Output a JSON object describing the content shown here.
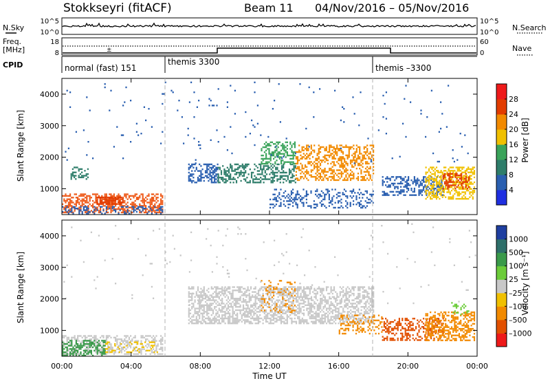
{
  "header": {
    "station": "Stokkseyri (fitACF)",
    "beam": "Beam 11",
    "date_range": "04/Nov/2016 – 05/Nov/2016"
  },
  "top_panels": {
    "nsky_label": "N.Sky",
    "nsky_ticks": [
      "10^5",
      "10^0"
    ],
    "nsearch_ticks": [
      "10^5",
      "10^0"
    ],
    "nsearch_label": "N.Search",
    "freq_label": "Freq.",
    "freq_unit": "[MHz]",
    "freq_ticks": [
      "18",
      "8"
    ],
    "nave_ticks": [
      "60",
      "0"
    ],
    "nave_label": "Nave",
    "cpid_label": "CPID",
    "cpid_segments": [
      {
        "label": "normal (fast) 151",
        "start": 0,
        "end": 6
      },
      {
        "label": "themis 3300",
        "start": 6,
        "end": 18
      },
      {
        "label": "themis –3300",
        "start": 18,
        "end": 24
      }
    ]
  },
  "chart_data": [
    {
      "type": "heatmap",
      "name": "power",
      "ylabel": "Slant Range [km]",
      "xlabel": "Time UT",
      "xlim": [
        0,
        24
      ],
      "ylim": [
        180,
        4500
      ],
      "y_ticks": [
        "1000",
        "2000",
        "3000",
        "4000"
      ],
      "x_ticks": [
        "00:00",
        "04:00",
        "08:00",
        "12:00",
        "16:00",
        "20:00",
        "00:00"
      ],
      "colorbar": {
        "label": "Power [dB]",
        "ticks": [
          "4",
          "8",
          "12",
          "16",
          "20",
          "24",
          "28"
        ],
        "colors": [
          "#1f2fe0",
          "#2a5fb0",
          "#2e7d6a",
          "#3aa35a",
          "#f0c000",
          "#f28a00",
          "#e23c00",
          "#ee1a1a"
        ]
      },
      "regions": [
        {
          "t0": 0.0,
          "t1": 5.8,
          "r0": 250,
          "r1": 850,
          "c": "#ee5a1a",
          "d": 0.55
        },
        {
          "t0": 0.0,
          "t1": 5.8,
          "r0": 200,
          "r1": 450,
          "c": "#2a5fb0",
          "d": 0.35
        },
        {
          "t0": 2.0,
          "t1": 3.5,
          "r0": 500,
          "r1": 750,
          "c": "#e23c00",
          "d": 0.7
        },
        {
          "t0": 0.5,
          "t1": 1.5,
          "r0": 1300,
          "r1": 1700,
          "c": "#2e7d6a",
          "d": 0.35
        },
        {
          "t0": 7.3,
          "t1": 9.0,
          "r0": 1200,
          "r1": 1800,
          "c": "#2a5fb0",
          "d": 0.45
        },
        {
          "t0": 9.0,
          "t1": 13.5,
          "r0": 1200,
          "r1": 1800,
          "c": "#2e7d6a",
          "d": 0.45
        },
        {
          "t0": 11.5,
          "t1": 13.5,
          "r0": 1800,
          "r1": 2500,
          "c": "#3aa35a",
          "d": 0.5
        },
        {
          "t0": 13.5,
          "t1": 18.0,
          "r0": 1300,
          "r1": 2400,
          "c": "#f28a00",
          "d": 0.45
        },
        {
          "t0": 12.0,
          "t1": 18.0,
          "r0": 400,
          "r1": 1000,
          "c": "#2a5fb0",
          "d": 0.25
        },
        {
          "t0": 18.5,
          "t1": 22.0,
          "r0": 800,
          "r1": 1400,
          "c": "#2a5fb0",
          "d": 0.45
        },
        {
          "t0": 21.0,
          "t1": 23.8,
          "r0": 700,
          "r1": 1700,
          "c": "#f0c000",
          "d": 0.5
        },
        {
          "t0": 22.0,
          "t1": 23.5,
          "r0": 1000,
          "r1": 1500,
          "c": "#e23c00",
          "d": 0.45
        },
        {
          "t0": 0.0,
          "t1": 24.0,
          "r0": 1800,
          "r1": 4400,
          "c": "#2a5fb0",
          "d": 0.012
        }
      ]
    },
    {
      "type": "heatmap",
      "name": "velocity",
      "ylabel": "Slant Range [km]",
      "xlabel": "Time UT",
      "xlim": [
        0,
        24
      ],
      "ylim": [
        180,
        4500
      ],
      "y_ticks": [
        "1000",
        "2000",
        "3000",
        "4000"
      ],
      "x_ticks": [
        "00:00",
        "04:00",
        "08:00",
        "12:00",
        "16:00",
        "20:00",
        "00:00"
      ],
      "colorbar": {
        "label": "Velocity [m s⁻¹]",
        "ticks": [
          "1000",
          "500",
          "100",
          "25",
          "–25",
          "–100",
          "–500",
          "–1000"
        ],
        "colors": [
          "#1f3fa0",
          "#2e6f6a",
          "#3a9a4a",
          "#6ccc3a",
          "#c8c8c8",
          "#f0c000",
          "#f28a00",
          "#e25000",
          "#ee1a1a"
        ]
      },
      "regions": [
        {
          "t0": 0.0,
          "t1": 5.8,
          "r0": 250,
          "r1": 850,
          "c": "#c8c8c8",
          "d": 0.45
        },
        {
          "t0": 0.0,
          "t1": 2.5,
          "r0": 200,
          "r1": 700,
          "c": "#3a9a4a",
          "d": 0.45
        },
        {
          "t0": 2.5,
          "t1": 5.5,
          "r0": 300,
          "r1": 650,
          "c": "#f0c000",
          "d": 0.25
        },
        {
          "t0": 7.3,
          "t1": 18.0,
          "r0": 1200,
          "r1": 2400,
          "c": "#c8c8c8",
          "d": 0.55
        },
        {
          "t0": 11.5,
          "t1": 13.5,
          "r0": 1600,
          "r1": 2600,
          "c": "#f28a00",
          "d": 0.18
        },
        {
          "t0": 16.0,
          "t1": 18.5,
          "r0": 900,
          "r1": 1500,
          "c": "#f28a00",
          "d": 0.3
        },
        {
          "t0": 18.5,
          "t1": 22.0,
          "r0": 700,
          "r1": 1400,
          "c": "#e25000",
          "d": 0.4
        },
        {
          "t0": 21.0,
          "t1": 23.8,
          "r0": 700,
          "r1": 1600,
          "c": "#f28a00",
          "d": 0.5
        },
        {
          "t0": 22.5,
          "t1": 23.5,
          "r0": 1500,
          "r1": 1900,
          "c": "#6ccc3a",
          "d": 0.3
        },
        {
          "t0": 0.0,
          "t1": 24.0,
          "r0": 1800,
          "r1": 4400,
          "c": "#c8c8c8",
          "d": 0.01
        }
      ]
    }
  ]
}
